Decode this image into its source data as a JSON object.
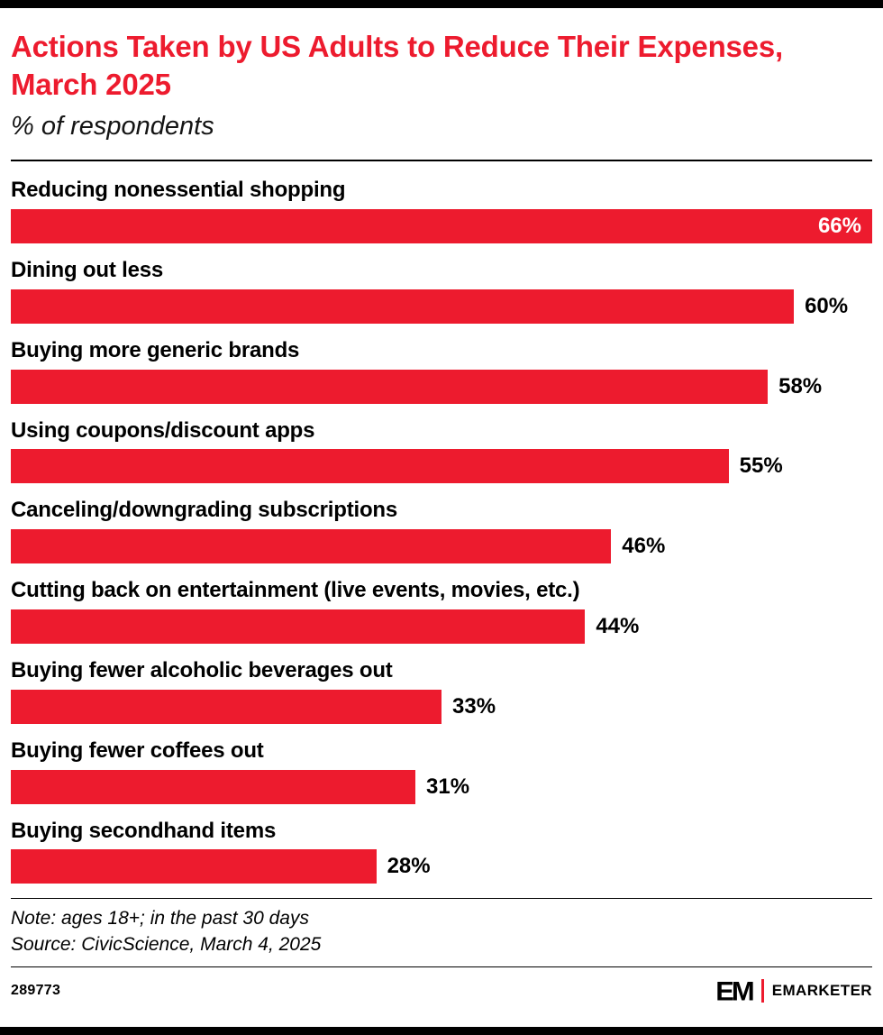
{
  "colors": {
    "accent_red": "#ED1B2E",
    "text_black": "#000000",
    "bar_value_inside": "#ffffff"
  },
  "header": {
    "title": "Actions Taken by US Adults to Reduce Their Expenses, March 2025",
    "subtitle": "% of respondents"
  },
  "chart_data": {
    "type": "bar",
    "orientation": "horizontal",
    "title": "Actions Taken by US Adults to Reduce Their Expenses, March 2025",
    "subtitle": "% of respondents",
    "categories": [
      "Reducing nonessential shopping",
      "Dining out less",
      "Buying more generic brands",
      "Using coupons/discount apps",
      "Canceling/downgrading subscriptions",
      "Cutting back on entertainment (live events, movies, etc.)",
      "Buying fewer alcoholic beverages out",
      "Buying fewer coffees out",
      "Buying secondhand items"
    ],
    "values": [
      66,
      60,
      58,
      55,
      46,
      44,
      33,
      31,
      28
    ],
    "value_suffix": "%",
    "xlim": [
      0,
      66
    ],
    "bar_color": "#ED1B2E",
    "grid": false,
    "legend": false,
    "value_labels": "end-of-bar, inside bar when bar is full width"
  },
  "footnotes": {
    "note": "Note: ages 18+; in the past 30 days",
    "source": "Source: CivicScience, March 4, 2025"
  },
  "footer": {
    "chart_id": "289773",
    "logo_monogram": "EM",
    "logo_brand": "EMARKETER"
  }
}
